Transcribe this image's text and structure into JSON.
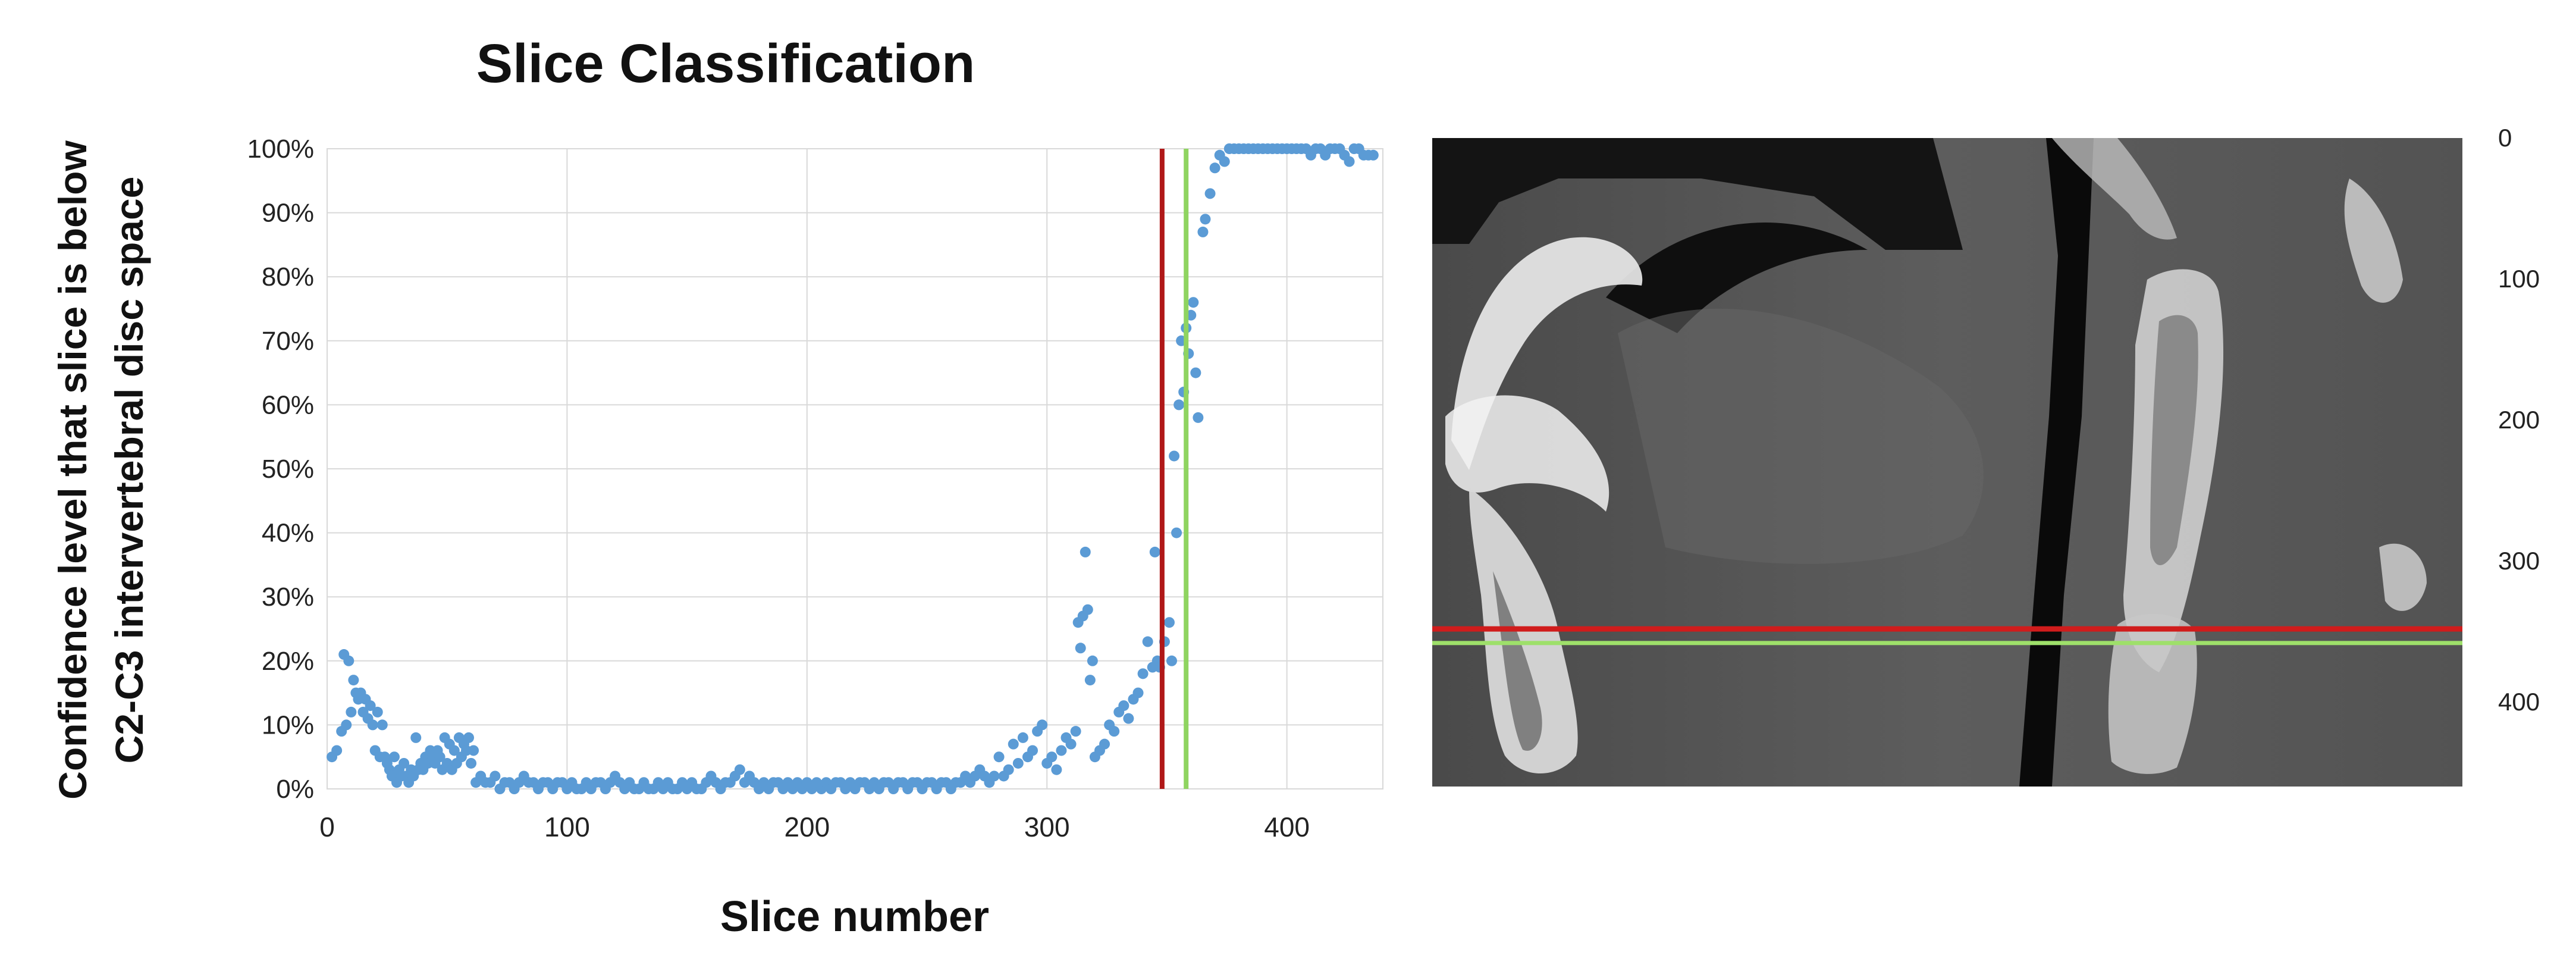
{
  "chart_data": {
    "type": "scatter",
    "title": "Slice Classification",
    "xlabel": "Slice number",
    "ylabel": "Confidence level that slice is below C2-C3 intervertebral disc space",
    "ylabel_lines": [
      "Confidence level that slice is below",
      "C2-C3 intervertebral disc space"
    ],
    "xlim": [
      0,
      440
    ],
    "ylim": [
      0,
      1
    ],
    "x_ticks": [
      0,
      100,
      200,
      300,
      400
    ],
    "y_ticks": [
      0,
      0.1,
      0.2,
      0.3,
      0.4,
      0.5,
      0.6,
      0.7,
      0.8,
      0.9,
      1.0
    ],
    "y_tick_labels": [
      "0%",
      "10%",
      "20%",
      "30%",
      "40%",
      "50%",
      "60%",
      "70%",
      "80%",
      "90%",
      "100%"
    ],
    "grid": true,
    "legend": "none",
    "marker_color": "#5b9bd5",
    "vertical_lines": [
      {
        "x": 348,
        "color": "#b01818"
      },
      {
        "x": 358,
        "color": "#8fd460"
      }
    ],
    "series": [
      {
        "points": [
          [
            2,
            0.05
          ],
          [
            4,
            0.06
          ],
          [
            6,
            0.09
          ],
          [
            7,
            0.21
          ],
          [
            8,
            0.1
          ],
          [
            9,
            0.2
          ],
          [
            10,
            0.12
          ],
          [
            11,
            0.17
          ],
          [
            12,
            0.15
          ],
          [
            13,
            0.14
          ],
          [
            14,
            0.15
          ],
          [
            15,
            0.12
          ],
          [
            16,
            0.14
          ],
          [
            17,
            0.11
          ],
          [
            18,
            0.13
          ],
          [
            19,
            0.1
          ],
          [
            20,
            0.06
          ],
          [
            21,
            0.12
          ],
          [
            22,
            0.05
          ],
          [
            23,
            0.1
          ],
          [
            24,
            0.05
          ],
          [
            25,
            0.04
          ],
          [
            26,
            0.03
          ],
          [
            27,
            0.02
          ],
          [
            28,
            0.05
          ],
          [
            29,
            0.01
          ],
          [
            30,
            0.03
          ],
          [
            31,
            0.02
          ],
          [
            32,
            0.04
          ],
          [
            33,
            0.02
          ],
          [
            34,
            0.01
          ],
          [
            35,
            0.03
          ],
          [
            36,
            0.02
          ],
          [
            37,
            0.08
          ],
          [
            38,
            0.03
          ],
          [
            39,
            0.04
          ],
          [
            40,
            0.03
          ],
          [
            41,
            0.05
          ],
          [
            42,
            0.04
          ],
          [
            43,
            0.06
          ],
          [
            44,
            0.05
          ],
          [
            45,
            0.04
          ],
          [
            46,
            0.06
          ],
          [
            47,
            0.05
          ],
          [
            48,
            0.03
          ],
          [
            49,
            0.08
          ],
          [
            50,
            0.04
          ],
          [
            51,
            0.07
          ],
          [
            52,
            0.03
          ],
          [
            53,
            0.06
          ],
          [
            54,
            0.04
          ],
          [
            55,
            0.08
          ],
          [
            56,
            0.05
          ],
          [
            57,
            0.07
          ],
          [
            58,
            0.06
          ],
          [
            59,
            0.08
          ],
          [
            60,
            0.04
          ],
          [
            61,
            0.06
          ],
          [
            62,
            0.01
          ],
          [
            64,
            0.02
          ],
          [
            66,
            0.01
          ],
          [
            68,
            0.01
          ],
          [
            70,
            0.02
          ],
          [
            72,
            0.0
          ],
          [
            74,
            0.01
          ],
          [
            76,
            0.01
          ],
          [
            78,
            0.0
          ],
          [
            80,
            0.01
          ],
          [
            82,
            0.02
          ],
          [
            84,
            0.01
          ],
          [
            86,
            0.01
          ],
          [
            88,
            0.0
          ],
          [
            90,
            0.01
          ],
          [
            92,
            0.01
          ],
          [
            94,
            0.0
          ],
          [
            96,
            0.01
          ],
          [
            98,
            0.01
          ],
          [
            100,
            0.0
          ],
          [
            102,
            0.01
          ],
          [
            104,
            0.0
          ],
          [
            106,
            0.0
          ],
          [
            108,
            0.01
          ],
          [
            110,
            0.0
          ],
          [
            112,
            0.01
          ],
          [
            114,
            0.01
          ],
          [
            116,
            0.0
          ],
          [
            118,
            0.01
          ],
          [
            120,
            0.02
          ],
          [
            122,
            0.01
          ],
          [
            124,
            0.0
          ],
          [
            126,
            0.01
          ],
          [
            128,
            0.0
          ],
          [
            130,
            0.0
          ],
          [
            132,
            0.01
          ],
          [
            134,
            0.0
          ],
          [
            136,
            0.0
          ],
          [
            138,
            0.01
          ],
          [
            140,
            0.0
          ],
          [
            142,
            0.01
          ],
          [
            144,
            0.0
          ],
          [
            146,
            0.0
          ],
          [
            148,
            0.01
          ],
          [
            150,
            0.0
          ],
          [
            152,
            0.01
          ],
          [
            154,
            0.0
          ],
          [
            156,
            0.0
          ],
          [
            158,
            0.01
          ],
          [
            160,
            0.02
          ],
          [
            162,
            0.01
          ],
          [
            164,
            0.0
          ],
          [
            166,
            0.01
          ],
          [
            168,
            0.01
          ],
          [
            170,
            0.02
          ],
          [
            172,
            0.03
          ],
          [
            174,
            0.01
          ],
          [
            176,
            0.02
          ],
          [
            178,
            0.01
          ],
          [
            180,
            0.0
          ],
          [
            182,
            0.01
          ],
          [
            184,
            0.0
          ],
          [
            186,
            0.01
          ],
          [
            188,
            0.01
          ],
          [
            190,
            0.0
          ],
          [
            192,
            0.01
          ],
          [
            194,
            0.0
          ],
          [
            196,
            0.01
          ],
          [
            198,
            0.0
          ],
          [
            200,
            0.01
          ],
          [
            202,
            0.0
          ],
          [
            204,
            0.01
          ],
          [
            206,
            0.0
          ],
          [
            208,
            0.01
          ],
          [
            210,
            0.0
          ],
          [
            212,
            0.01
          ],
          [
            214,
            0.01
          ],
          [
            216,
            0.0
          ],
          [
            218,
            0.01
          ],
          [
            220,
            0.0
          ],
          [
            222,
            0.01
          ],
          [
            224,
            0.01
          ],
          [
            226,
            0.0
          ],
          [
            228,
            0.01
          ],
          [
            230,
            0.0
          ],
          [
            232,
            0.01
          ],
          [
            234,
            0.01
          ],
          [
            236,
            0.0
          ],
          [
            238,
            0.01
          ],
          [
            240,
            0.01
          ],
          [
            242,
            0.0
          ],
          [
            244,
            0.01
          ],
          [
            246,
            0.01
          ],
          [
            248,
            0.0
          ],
          [
            250,
            0.01
          ],
          [
            252,
            0.01
          ],
          [
            254,
            0.0
          ],
          [
            256,
            0.01
          ],
          [
            258,
            0.01
          ],
          [
            260,
            0.0
          ],
          [
            262,
            0.01
          ],
          [
            264,
            0.01
          ],
          [
            266,
            0.02
          ],
          [
            268,
            0.01
          ],
          [
            270,
            0.02
          ],
          [
            272,
            0.03
          ],
          [
            274,
            0.02
          ],
          [
            276,
            0.01
          ],
          [
            278,
            0.02
          ],
          [
            280,
            0.05
          ],
          [
            282,
            0.02
          ],
          [
            284,
            0.03
          ],
          [
            286,
            0.07
          ],
          [
            288,
            0.04
          ],
          [
            290,
            0.08
          ],
          [
            292,
            0.05
          ],
          [
            294,
            0.06
          ],
          [
            296,
            0.09
          ],
          [
            298,
            0.1
          ],
          [
            300,
            0.04
          ],
          [
            302,
            0.05
          ],
          [
            304,
            0.03
          ],
          [
            306,
            0.06
          ],
          [
            308,
            0.08
          ],
          [
            310,
            0.07
          ],
          [
            312,
            0.09
          ],
          [
            313,
            0.26
          ],
          [
            314,
            0.22
          ],
          [
            315,
            0.27
          ],
          [
            316,
            0.37
          ],
          [
            317,
            0.28
          ],
          [
            318,
            0.17
          ],
          [
            319,
            0.2
          ],
          [
            320,
            0.05
          ],
          [
            322,
            0.06
          ],
          [
            324,
            0.07
          ],
          [
            326,
            0.1
          ],
          [
            328,
            0.09
          ],
          [
            330,
            0.12
          ],
          [
            332,
            0.13
          ],
          [
            334,
            0.11
          ],
          [
            336,
            0.14
          ],
          [
            338,
            0.15
          ],
          [
            340,
            0.18
          ],
          [
            342,
            0.23
          ],
          [
            344,
            0.19
          ],
          [
            345,
            0.37
          ],
          [
            346,
            0.2
          ],
          [
            347,
            0.19
          ],
          [
            349,
            0.23
          ],
          [
            351,
            0.26
          ],
          [
            352,
            0.2
          ],
          [
            353,
            0.52
          ],
          [
            354,
            0.4
          ],
          [
            355,
            0.6
          ],
          [
            356,
            0.7
          ],
          [
            357,
            0.62
          ],
          [
            358,
            0.72
          ],
          [
            359,
            0.68
          ],
          [
            360,
            0.74
          ],
          [
            361,
            0.76
          ],
          [
            362,
            0.65
          ],
          [
            363,
            0.58
          ],
          [
            365,
            0.87
          ],
          [
            366,
            0.89
          ],
          [
            368,
            0.93
          ],
          [
            370,
            0.97
          ],
          [
            372,
            0.99
          ],
          [
            374,
            0.98
          ],
          [
            376,
            1.0
          ],
          [
            378,
            1.0
          ],
          [
            380,
            1.0
          ],
          [
            382,
            1.0
          ],
          [
            384,
            1.0
          ],
          [
            386,
            1.0
          ],
          [
            388,
            1.0
          ],
          [
            390,
            1.0
          ],
          [
            392,
            1.0
          ],
          [
            394,
            1.0
          ],
          [
            396,
            1.0
          ],
          [
            398,
            1.0
          ],
          [
            400,
            1.0
          ],
          [
            402,
            1.0
          ],
          [
            404,
            1.0
          ],
          [
            406,
            1.0
          ],
          [
            408,
            1.0
          ],
          [
            410,
            0.99
          ],
          [
            412,
            1.0
          ],
          [
            414,
            1.0
          ],
          [
            416,
            0.99
          ],
          [
            418,
            1.0
          ],
          [
            420,
            1.0
          ],
          [
            422,
            1.0
          ],
          [
            424,
            0.99
          ],
          [
            426,
            0.98
          ],
          [
            428,
            1.0
          ],
          [
            430,
            1.0
          ],
          [
            432,
            0.99
          ],
          [
            434,
            0.99
          ],
          [
            436,
            0.99
          ]
        ]
      }
    ]
  },
  "ct_panel": {
    "scale_ticks": [
      "0",
      "100",
      "200",
      "300",
      "400"
    ],
    "scale_values": [
      0,
      100,
      200,
      300,
      400
    ],
    "scale_range": [
      0,
      460
    ],
    "line_colors": [
      "#d01c1c",
      "#9ee06a"
    ]
  }
}
